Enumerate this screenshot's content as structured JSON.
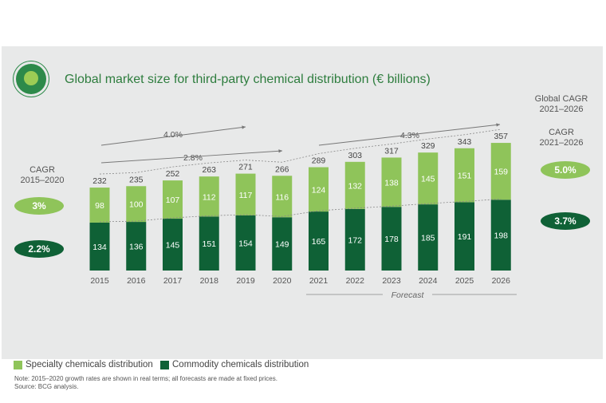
{
  "title": "Global market size for third-party chemical distribution (€ billions)",
  "colors": {
    "specialty": "#8fc45a",
    "commodity": "#0f6136",
    "title": "#2e7d3e",
    "panel": "#e8e9e9"
  },
  "left_cagr": {
    "label_line1": "CAGR",
    "label_line2": "2015–2020",
    "specialty": "3%",
    "commodity": "2.2%"
  },
  "right_cagr": {
    "global_line1": "Global CAGR",
    "global_line2": "2021–2026",
    "label_line1": "CAGR",
    "label_line2": "2021–2026",
    "specialty": "5.0%",
    "commodity": "3.7%"
  },
  "trend_labels": {
    "a": "4.0%",
    "b": "2.8%",
    "c": "4.3%"
  },
  "forecast_label": "Forecast",
  "legend": {
    "specialty": "Specialty chemicals distribution",
    "commodity": "Commodity chemicals distribution"
  },
  "note_line1": "Note: 2015–2020 growth rates are shown in real terms; all forecasts are made at fixed prices.",
  "note_line2": "Source: BCG analysis.",
  "chart_data": {
    "type": "bar",
    "stacked": true,
    "title": "Global market size for third-party chemical distribution (€ billions)",
    "categories": [
      "2015",
      "2016",
      "2017",
      "2018",
      "2019",
      "2020",
      "2021",
      "2022",
      "2023",
      "2024",
      "2025",
      "2026"
    ],
    "series": [
      {
        "name": "Commodity chemicals distribution",
        "values": [
          134,
          136,
          145,
          151,
          154,
          149,
          165,
          172,
          178,
          185,
          191,
          198
        ]
      },
      {
        "name": "Specialty chemicals distribution",
        "values": [
          98,
          100,
          107,
          112,
          117,
          116,
          124,
          132,
          138,
          145,
          151,
          159
        ]
      }
    ],
    "totals": [
      232,
      235,
      252,
      263,
      271,
      266,
      289,
      303,
      317,
      329,
      343,
      357
    ],
    "forecast_from": "2021"
  }
}
